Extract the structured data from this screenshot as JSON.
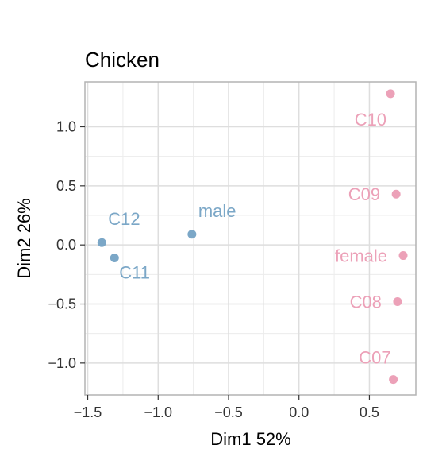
{
  "chart_data": {
    "type": "scatter",
    "title": "Chicken",
    "xlabel": "Dim1 52%",
    "ylabel": "Dim2 26%",
    "xlim": [
      -1.52,
      0.83
    ],
    "ylim": [
      -1.27,
      1.38
    ],
    "xticks": [
      -1.5,
      -1.0,
      -0.5,
      0.0,
      0.5
    ],
    "xtick_labels": [
      "−1.5",
      "−1.0",
      "−0.5",
      "0.0",
      "0.5"
    ],
    "yticks": [
      -1.0,
      -0.5,
      0.0,
      0.5,
      1.0
    ],
    "ytick_labels": [
      "−1.0",
      "−0.5",
      "0.0",
      "0.5",
      "1.0"
    ],
    "grid": true,
    "colors": {
      "group_a": "#7ba7c7",
      "group_b": "#eca1b8"
    },
    "series": [
      {
        "color": "#7ba7c7",
        "points": [
          {
            "label": "C12",
            "x": -1.4,
            "y": 0.02,
            "label_pos": "above-right"
          },
          {
            "label": "C11",
            "x": -1.31,
            "y": -0.11,
            "label_pos": "below-right"
          },
          {
            "label": "male",
            "x": -0.76,
            "y": 0.09,
            "label_pos": "above-right"
          }
        ]
      },
      {
        "color": "#eca1b8",
        "points": [
          {
            "label": "C10",
            "x": 0.65,
            "y": 1.28,
            "label_pos": "below-left"
          },
          {
            "label": "C09",
            "x": 0.69,
            "y": 0.43,
            "label_pos": "left"
          },
          {
            "label": "female",
            "x": 0.74,
            "y": -0.09,
            "label_pos": "left"
          },
          {
            "label": "C08",
            "x": 0.7,
            "y": -0.48,
            "label_pos": "left"
          },
          {
            "label": "C07",
            "x": 0.67,
            "y": -1.14,
            "label_pos": "above-left"
          }
        ]
      }
    ]
  }
}
